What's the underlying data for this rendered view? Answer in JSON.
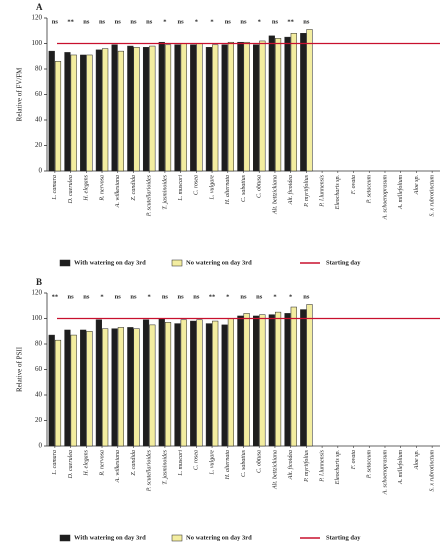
{
  "chart_data": [
    {
      "type": "bar",
      "title": "A",
      "y_label": "Relative of FV/FM",
      "categories": [
        "L. camara",
        "D. caerulea",
        "H. elegans",
        "R. nervosa",
        "A. wilkesiana",
        "Z. candida",
        "P. scutellarioides",
        "T. jasminoides",
        "L. muscari",
        "C. rosea",
        "L. vulgare",
        "H. alternata",
        "C. sabatius",
        "C. obtusa",
        "Alt. bettzickiana",
        "Alt. ficoidea",
        "P. myriifolius",
        "P. l.lunnensis",
        "Eleocharis sp.",
        "F. ovata",
        "P. setaceum",
        "A. schoenoprasum",
        "A. millefolium",
        "Aloe sp.",
        "S. x rubrotinctum"
      ],
      "series": [
        {
          "name": "With watering on day 3rd",
          "color": "#1e1e1e",
          "values": [
            94,
            93,
            91,
            95,
            99,
            98,
            97,
            101,
            99,
            99,
            97,
            99,
            101,
            99,
            106,
            105,
            108,
            null,
            null,
            null,
            null,
            null,
            null,
            null,
            null
          ]
        },
        {
          "name": "No watering on day 3rd",
          "color": "#f3eda0",
          "values": [
            86,
            91,
            91,
            96,
            94,
            97,
            98,
            99,
            100,
            100,
            99,
            101,
            101,
            102,
            104,
            108,
            111,
            null,
            null,
            null,
            null,
            null,
            null,
            null,
            null
          ]
        }
      ],
      "annotations": [
        "ns",
        "**",
        "ns",
        "ns",
        "ns",
        "ns",
        "ns",
        "*",
        "ns",
        "*",
        "*",
        "ns",
        "ns",
        "*",
        "ns",
        "**",
        "ns"
      ],
      "reference_line": {
        "name": "Starting day",
        "value": 100,
        "color": "#c8102e"
      },
      "ylim": [
        0,
        120
      ],
      "yticks": [
        0,
        20,
        40,
        60,
        80,
        100,
        120
      ]
    },
    {
      "type": "bar",
      "title": "B",
      "y_label": "Relative of PSII",
      "categories": [
        "L. camara",
        "D. caerulea",
        "H. elegans",
        "R. nervosa",
        "A. wilkesiana",
        "Z. candida",
        "P. scutellarioides",
        "T. jasminoides",
        "L. muscari",
        "C. rosea",
        "L. vulgare",
        "H. alternata",
        "C. sabatius",
        "C. obtusa",
        "Alt. bettzickiana",
        "Alt. ficoidea",
        "P. myriifolius",
        "P. l.lunnensis",
        "Eleocharis sp.",
        "F. ovata",
        "P. setaceum",
        "A. schoenoprasum",
        "A. millefolium",
        "Aloe sp.",
        "S. x rubrotinctum"
      ],
      "series": [
        {
          "name": "With watering on day 3rd",
          "color": "#1e1e1e",
          "values": [
            87,
            91,
            91,
            99,
            92,
            93,
            99,
            100,
            96,
            98,
            96,
            95,
            102,
            102,
            103,
            104,
            107,
            null,
            null,
            null,
            null,
            null,
            null,
            null,
            null
          ]
        },
        {
          "name": "No watering on day 3rd",
          "color": "#f3eda0",
          "values": [
            83,
            87,
            90,
            92,
            93,
            92,
            95,
            97,
            99,
            99,
            98,
            100,
            104,
            103,
            105,
            109,
            111,
            null,
            null,
            null,
            null,
            null,
            null,
            null,
            null
          ]
        }
      ],
      "annotations": [
        "**",
        "ns",
        "ns",
        "*",
        "ns",
        "ns",
        "*",
        "ns",
        "ns",
        "ns",
        "**",
        "*",
        "ns",
        "ns",
        "*",
        "*",
        "ns"
      ],
      "reference_line": {
        "name": "Starting day",
        "value": 100,
        "color": "#c8102e"
      },
      "ylim": [
        0,
        120
      ],
      "yticks": [
        0,
        20,
        40,
        60,
        80,
        100,
        120
      ]
    }
  ]
}
